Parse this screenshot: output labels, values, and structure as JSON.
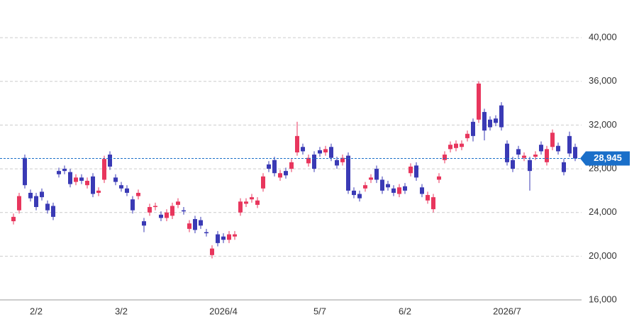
{
  "chart_data": {
    "type": "candlestick",
    "categories": [
      null,
      null,
      null,
      null,
      "2/2",
      null,
      null,
      null,
      null,
      null,
      null,
      null,
      null,
      null,
      null,
      null,
      null,
      null,
      null,
      "3/2",
      null,
      null,
      null,
      null,
      null,
      null,
      null,
      null,
      null,
      null,
      null,
      null,
      null,
      null,
      null,
      null,
      null,
      "2026/4",
      null,
      null,
      null,
      null,
      null,
      null,
      null,
      null,
      null,
      null,
      null,
      null,
      null,
      null,
      null,
      null,
      "5/7",
      null,
      null,
      null,
      null,
      null,
      null,
      null,
      null,
      null,
      null,
      null,
      null,
      null,
      null,
      "6/2",
      null,
      null,
      null,
      null,
      null,
      null,
      null,
      null,
      null,
      null,
      null,
      null,
      null,
      null,
      null,
      null,
      null,
      "2026/7",
      null,
      null,
      null,
      null,
      null,
      null,
      null,
      null,
      null,
      null,
      null,
      null
    ],
    "open": [
      23200,
      24200,
      29000,
      25800,
      25500,
      25900,
      24800,
      24600,
      27800,
      28000,
      27700,
      26800,
      27200,
      26500,
      27300,
      25800,
      27000,
      29300,
      27200,
      26500,
      26200,
      25200,
      25500,
      23200,
      24000,
      24500,
      23800,
      23500,
      23700,
      24700,
      24200,
      22500,
      23400,
      23300,
      22200,
      20100,
      22000,
      21800,
      21500,
      21800,
      24000,
      24800,
      25200,
      24700,
      26200,
      28400,
      28800,
      27200,
      27800,
      28000,
      29500,
      30000,
      28500,
      29300,
      29700,
      29500,
      30000,
      28800,
      28600,
      29200,
      26000,
      25700,
      26200,
      27000,
      28000,
      27000,
      26600,
      26200,
      25700,
      26400,
      27600,
      28300,
      26300,
      25100,
      24300,
      27000,
      28800,
      29800,
      29900,
      30000,
      30800,
      32300,
      32500,
      33200,
      32500,
      32600,
      33800,
      30300,
      28800,
      29800,
      29000,
      28800,
      29100,
      30200,
      28600,
      30000,
      30100,
      28600,
      31000,
      30000
    ],
    "high": [
      23900,
      25800,
      29300,
      26100,
      25800,
      26200,
      25100,
      24900,
      28100,
      28300,
      28000,
      27500,
      27500,
      27200,
      27600,
      26300,
      29200,
      29600,
      27500,
      26800,
      26500,
      25500,
      26100,
      23500,
      24800,
      24900,
      24100,
      24300,
      24900,
      25300,
      24500,
      23300,
      23700,
      23600,
      22500,
      21000,
      22300,
      22100,
      22300,
      22300,
      25300,
      25300,
      25700,
      25400,
      27600,
      28700,
      29100,
      27900,
      28100,
      28900,
      32300,
      30300,
      29300,
      29600,
      30000,
      30100,
      30300,
      29100,
      29300,
      29500,
      26300,
      26000,
      26800,
      27500,
      28300,
      27300,
      26900,
      26500,
      26600,
      26700,
      28500,
      28600,
      26600,
      25900,
      25700,
      27600,
      29600,
      30500,
      30600,
      30600,
      31500,
      32600,
      36000,
      33500,
      32800,
      32900,
      34100,
      30600,
      29100,
      30100,
      29500,
      29100,
      29600,
      30500,
      30100,
      31600,
      30400,
      28900,
      31400,
      30300
    ],
    "low": [
      22900,
      23900,
      26200,
      25000,
      24200,
      25100,
      23900,
      23300,
      27200,
      27500,
      26300,
      26500,
      26600,
      26200,
      25400,
      25500,
      26700,
      27900,
      26500,
      25900,
      25500,
      23900,
      25200,
      22200,
      23700,
      24200,
      23200,
      23200,
      23400,
      24400,
      23800,
      22200,
      22100,
      22500,
      21800,
      19800,
      20900,
      21200,
      21200,
      21500,
      23700,
      24500,
      24900,
      24400,
      25900,
      27700,
      27300,
      26900,
      27100,
      27700,
      29200,
      29300,
      28200,
      27700,
      29100,
      29200,
      28700,
      28000,
      28300,
      25700,
      25300,
      25000,
      25900,
      26700,
      26700,
      25700,
      26000,
      25500,
      25400,
      25700,
      27300,
      26900,
      25400,
      24800,
      24000,
      26700,
      28500,
      29500,
      29600,
      29700,
      30500,
      30500,
      32200,
      30600,
      31500,
      31900,
      31500,
      28300,
      27700,
      29000,
      28700,
      26000,
      28800,
      29300,
      28300,
      29700,
      29300,
      27400,
      29100,
      28700
    ],
    "close": [
      23600,
      25500,
      26500,
      25300,
      24500,
      25400,
      24200,
      23600,
      27500,
      27800,
      26600,
      27200,
      26900,
      26900,
      25700,
      26000,
      28900,
      28200,
      26800,
      26200,
      25800,
      24200,
      25800,
      22800,
      24500,
      24600,
      23500,
      24000,
      24600,
      25000,
      24100,
      23000,
      22400,
      22800,
      22100,
      20700,
      21200,
      21500,
      22000,
      22000,
      25000,
      25000,
      25400,
      25100,
      27300,
      28000,
      27600,
      27600,
      27400,
      28600,
      31000,
      29600,
      29000,
      28000,
      29400,
      29800,
      29000,
      28300,
      29000,
      26000,
      25600,
      25300,
      26500,
      27200,
      27000,
      26000,
      26300,
      25800,
      26300,
      26000,
      28200,
      27200,
      25700,
      25600,
      25400,
      27300,
      29300,
      30200,
      30300,
      30300,
      31200,
      31000,
      35800,
      31500,
      31800,
      32200,
      31800,
      28600,
      28000,
      29300,
      29200,
      27800,
      29300,
      29600,
      29800,
      31300,
      29600,
      27700,
      29400,
      28945
    ],
    "up_color": "#e8365d",
    "down_color": "#3a3ab5",
    "last_price": 28945,
    "last_price_label": "28,945",
    "last_price_color": "#1a6fc9",
    "ylim": [
      16000,
      42800
    ],
    "yticks": [
      {
        "value": 16000,
        "label": "16,000"
      },
      {
        "value": 20000,
        "label": "20,000"
      },
      {
        "value": 24000,
        "label": "24,000"
      },
      {
        "value": 28000,
        "label": "28,000"
      },
      {
        "value": 32000,
        "label": "32,000"
      },
      {
        "value": 36000,
        "label": "36,000"
      },
      {
        "value": 40000,
        "label": "40,000"
      }
    ],
    "grid": true
  }
}
